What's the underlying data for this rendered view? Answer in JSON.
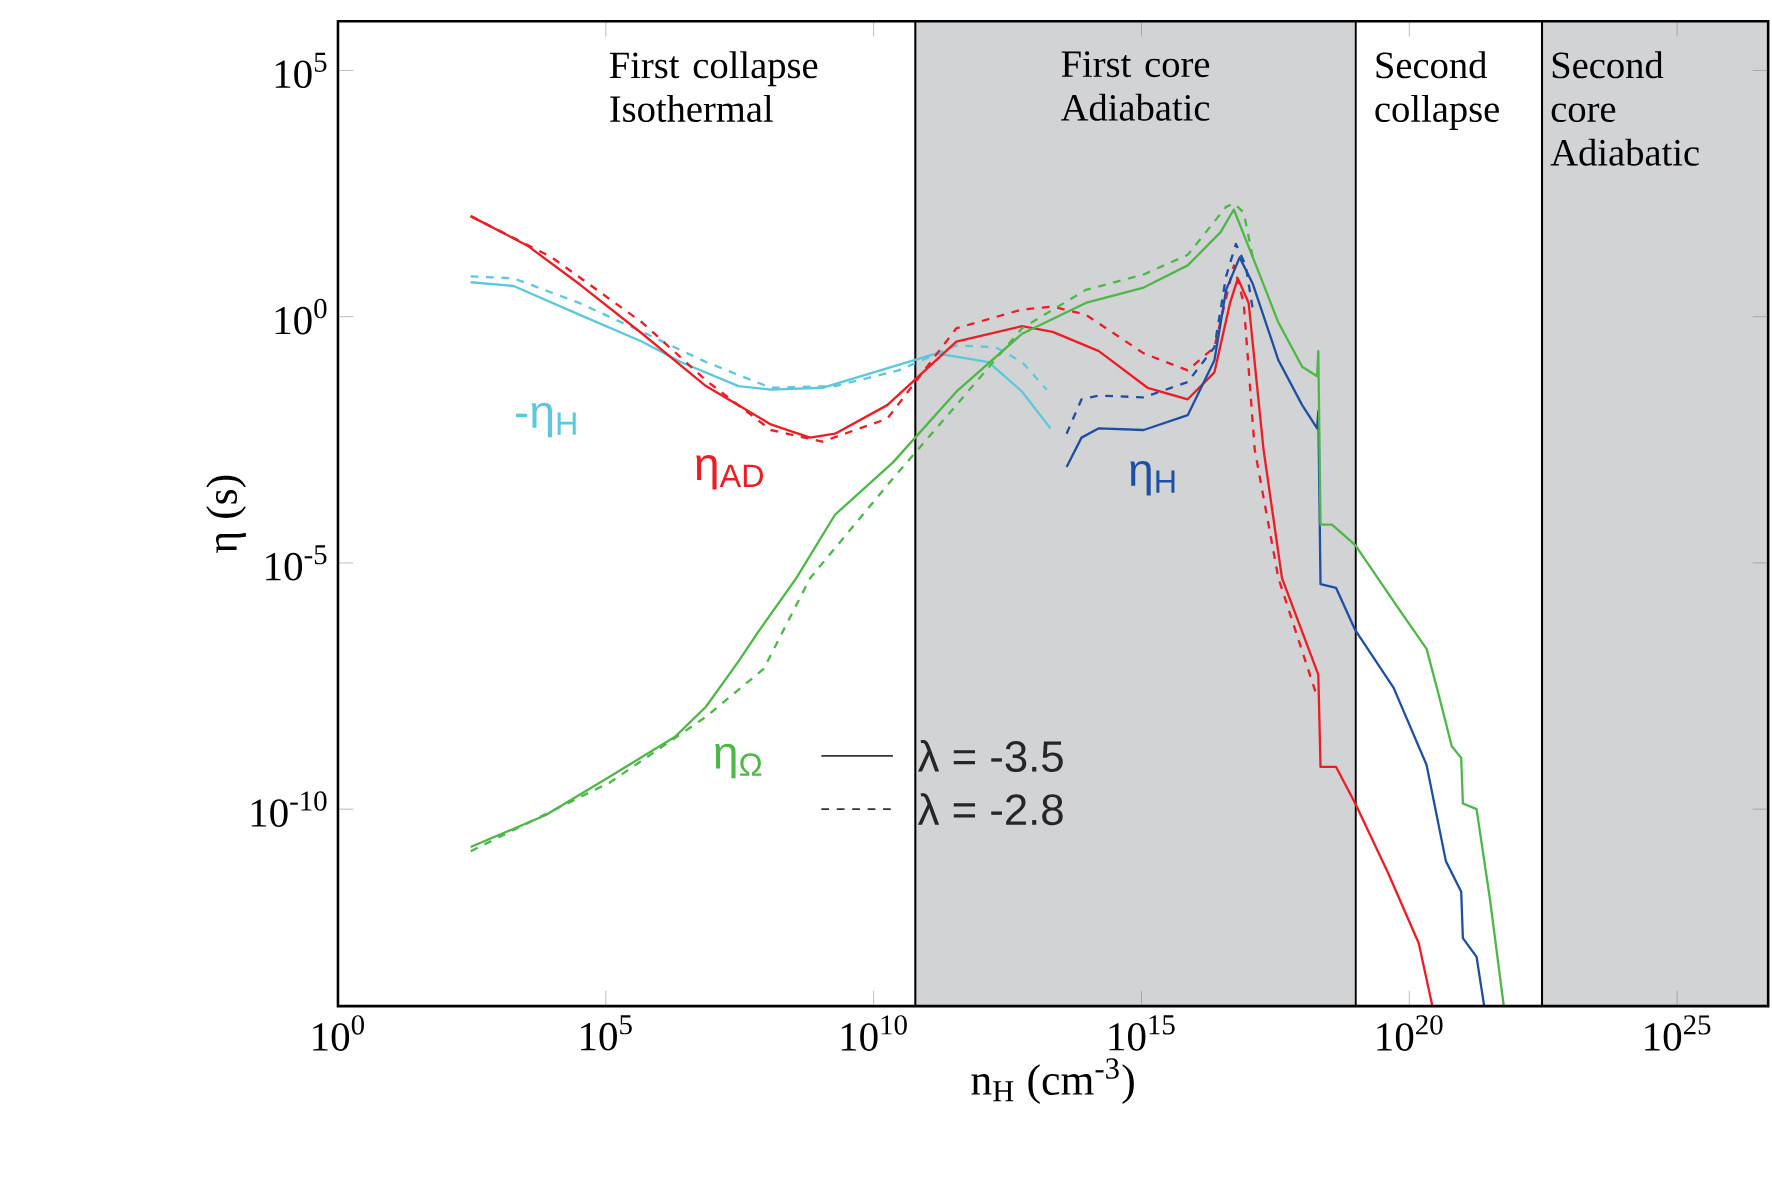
{
  "chart_data": {
    "type": "line",
    "xlabel": "n$_{H}$ (cm$^{-3}$)",
    "ylabel": "η (s)",
    "log": "xy",
    "xlim": [
      1,
      5e+26
    ],
    "ylim": [
      1e-14,
      1000000.0
    ],
    "xticks": [
      {
        "value": 1,
        "label": "10$^{0}$"
      },
      {
        "value": 100000.0,
        "label": "10$^{5}$"
      },
      {
        "value": 10000000000.0,
        "label": "10$^{10}$"
      },
      {
        "value": 1000000000000000.0,
        "label": "10$^{15}$"
      },
      {
        "value": 1e+20,
        "label": "10$^{20}$"
      },
      {
        "value": 1e+25,
        "label": "10$^{25}$"
      }
    ],
    "yticks": [
      {
        "value": 1e-10,
        "label": "10$^{-10}$"
      },
      {
        "value": 1e-05,
        "label": "10$^{-5}$"
      },
      {
        "value": 1,
        "label": "10$^{0}$"
      },
      {
        "value": 100000.0,
        "label": "10$^{5}$"
      }
    ],
    "bands": [
      {
        "axis": "x",
        "from": 60000000000.0,
        "to": 1e+19,
        "label": "First core Adiabatic",
        "color": "#d1d3d4"
      },
      {
        "axis": "x",
        "from": 3e+22,
        "to": 5e+26,
        "label": "Second core Adiabatic",
        "color": "#d1d3d4"
      }
    ],
    "annotations": [
      "First collapse Isothermal",
      "Second collapse",
      "λ = -3.5",
      "λ = -2.8"
    ],
    "series": [
      {
        "name": "-η$_{H}$",
        "color": "#5bc8dc",
        "line_style": "solid",
        "x": [
          300.0,
          1900.0,
          32000.0,
          480000.0,
          2500000.0,
          30000000.0,
          120000000.0,
          1100000000.0,
          10000000000.0,
          150000000000.0,
          1400000000000.0,
          5900000000000.0,
          20000000000000.0
        ],
        "values": [
          5.0,
          4.2,
          1.1,
          0.31,
          0.12,
          0.039,
          0.033,
          0.036,
          0.074,
          0.18,
          0.12,
          0.03,
          0.0054
        ]
      },
      {
        "color": "#5bc8dc",
        "line_style": "dashed",
        "x": [
          300.0,
          1900.0,
          32000.0,
          480000.0,
          7400000.0,
          120000000.0,
          1900000000.0,
          29000000000.0,
          350000000000.0,
          1900000000000.0,
          5900000000000.0,
          17000000000000.0
        ],
        "values": [
          6.6,
          6.0,
          1.9,
          0.49,
          0.12,
          0.036,
          0.039,
          0.081,
          0.26,
          0.24,
          0.12,
          0.033
        ]
      },
      {
        "name": "η$_{AD}$",
        "color": "#ee1c24",
        "line_style": "solid",
        "x": [
          300.0,
          3400.0,
          32000.0,
          480000.0,
          7400000.0,
          120000000.0,
          650000000.0,
          1900000000.0,
          18000000000.0,
          350000000000.0,
          5900000000000.0,
          22000000000000.0,
          160000000000000.0,
          1300000000000000.0,
          7300000000000000.0,
          2.3e+16,
          4.5e+16,
          6.3e+16,
          1e+17,
          1.9e+17,
          4.2e+17,
          2e+18,
          2.2e+18,
          4.3e+18,
          9.8e+18,
          4e+19,
          1.5e+20,
          2.7e+20
        ],
        "values": [
          110,
          28,
          4.6,
          0.45,
          0.039,
          0.0065,
          0.0035,
          0.0042,
          0.016,
          0.31,
          0.64,
          0.49,
          0.2,
          0.036,
          0.021,
          0.074,
          1.9,
          6.0,
          1.9,
          0.002,
          4.9e-06,
          5.4e-08,
          7.2e-10,
          7.2e-10,
          1.3e-10,
          5.1e-12,
          1.9e-13,
          1e-14
        ]
      },
      {
        "color": "#ee1c24",
        "line_style": "dashed",
        "x": [
          300.0,
          9800.0,
          480000.0,
          7400000.0,
          120000000.0,
          1100000000.0,
          18000000000.0,
          350000000000.0,
          5900000000000.0,
          22000000000000.0,
          91000000000000.0,
          1100000000000000.0,
          7300000000000000.0,
          2.3e+16,
          5.3e+16,
          8.1e+16,
          1.3e+17,
          3.6e+17,
          1.9e+18
        ],
        "values": [
          110,
          16,
          0.76,
          0.051,
          0.005,
          0.0029,
          0.0085,
          0.58,
          1.4,
          1.6,
          1.1,
          0.18,
          0.081,
          0.24,
          11,
          1.9,
          0.002,
          4.9e-06,
          1.9e-08
        ]
      },
      {
        "name": "η$_{H}$",
        "color": "#1f4fa3",
        "line_style": "solid",
        "x": [
          40000000000000.0,
          76000000000000.0,
          160000000000000.0,
          1100000000000000.0,
          7300000000000000.0,
          2.3e+16,
          3.8e+16,
          6.8e+16,
          1.2e+17,
          3.6e+17,
          1e+18,
          1.9e+18,
          2e+18,
          2.2e+18,
          4.3e+18,
          9.8e+18,
          5.1e+19,
          2.1e+20,
          4.8e+20,
          9.3e+20,
          1e+21,
          1.8e+21,
          2.5e+21
        ],
        "values": [
          0.00089,
          0.0035,
          0.0054,
          0.005,
          0.01,
          0.13,
          3.5,
          16,
          4.6,
          0.13,
          0.016,
          0.0054,
          0.012,
          3.7e-06,
          3.1e-06,
          4.3e-07,
          2.9e-08,
          7.9e-10,
          8.9e-12,
          2.1e-12,
          2.4e-13,
          1e-13,
          1e-14
        ]
      },
      {
        "color": "#1f4fa3",
        "line_style": "dashed",
        "x": [
          40000000000000.0,
          76000000000000.0,
          160000000000000.0,
          1100000000000000.0,
          7300000000000000.0,
          2.3e+16,
          3.8e+16,
          5.8e+16,
          8.8e+16,
          1.2e+17
        ],
        "values": [
          0.0042,
          0.021,
          0.025,
          0.023,
          0.047,
          0.24,
          6.6,
          30,
          11,
          1.4
        ]
      },
      {
        "name": "η$_{Ω}$",
        "color": "#4db848",
        "line_style": "solid",
        "x": [
          300.0,
          7600.0,
          120000.0,
          2000000.0,
          7400000.0,
          30000000.0,
          69000000.0,
          360000000.0,
          1900000000.0,
          23000000000.0,
          350000000000.0,
          5900000000000.0,
          91000000000000.0,
          1100000000000000.0,
          7300000000000000.0,
          3e+16,
          5.3e+16,
          1.2e+17,
          3.6e+17,
          1e+18,
          1.9e+18,
          2e+18,
          2.2e+18,
          3.6e+18,
          9.8e+18,
          6.6e+19,
          2.1e+20,
          3.5e+20,
          6.2e+20,
          9.3e+20,
          1e+21,
          1.8e+21,
          3.2e+21,
          5.8e+21
        ],
        "values": [
          1.7e-11,
          7.6e-11,
          4.6e-10,
          3e-09,
          1.2e-08,
          1e-07,
          3.9e-07,
          4.9e-06,
          9.5e-05,
          0.0011,
          0.03,
          0.45,
          1.9,
          3.9,
          11,
          52,
          150,
          16,
          0.76,
          0.096,
          0.062,
          0.2,
          6e-05,
          6e-05,
          2.3e-05,
          1.1e-06,
          1.8e-07,
          2.2e-08,
          1.9e-09,
          1.1e-09,
          1.3e-10,
          1e-10,
          1.5e-12,
          1e-14
        ]
      },
      {
        "color": "#4db848",
        "line_style": "dashed",
        "x": [
          300.0,
          120000.0,
          7400000.0,
          89000000.0,
          650000000.0,
          23000000000.0,
          350000000000.0,
          5900000000000.0,
          91000000000000.0,
          1100000000000000.0,
          7300000000000000.0,
          3.8e+16,
          5.3e+16,
          8.1e+16,
          1.2e+17
        ],
        "values": [
          1.4e-11,
          3.5e-10,
          7.5e-09,
          7.1e-08,
          4.9e-06,
          0.00052,
          0.016,
          0.58,
          3.5,
          7.2,
          18,
          170,
          200,
          130,
          16
        ]
      }
    ]
  }
}
